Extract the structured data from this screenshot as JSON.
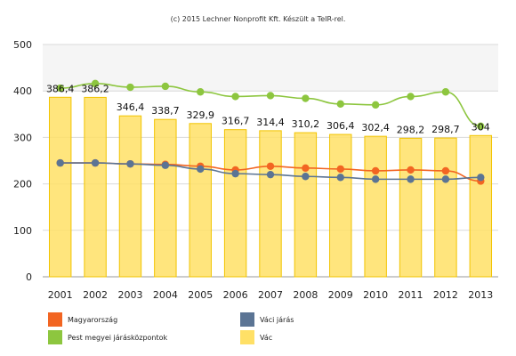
{
  "credit": "(c) 2015 Lechner Nonprofit Kft. Készült a TeIR-rel.",
  "chart_data": {
    "type": "bar",
    "categories": [
      "2001",
      "2002",
      "2003",
      "2004",
      "2005",
      "2006",
      "2007",
      "2008",
      "2009",
      "2010",
      "2011",
      "2012",
      "2013"
    ],
    "ylim": [
      0,
      500
    ],
    "yticks": [
      0,
      100,
      200,
      300,
      400,
      500
    ],
    "grid": true,
    "legend_position": "bottom",
    "series": [
      {
        "name": "Vác",
        "kind": "bar",
        "color": "#ffe066",
        "values": [
          386.4,
          386.2,
          346.4,
          338.7,
          329.9,
          316.7,
          314.4,
          310.2,
          306.4,
          302.4,
          298.2,
          298.7,
          304
        ],
        "labels": [
          "386,4",
          "386,2",
          "346,4",
          "338,7",
          "329,9",
          "316,7",
          "314,4",
          "310,2",
          "306,4",
          "302,4",
          "298,2",
          "298,7",
          "304"
        ]
      },
      {
        "name": "Pest megyei járásközpontok",
        "kind": "line",
        "color": "#8dc63f",
        "values": [
          406,
          416,
          408,
          410,
          398,
          388,
          390,
          384,
          372,
          370,
          388,
          398,
          324
        ]
      },
      {
        "name": "Magyarország",
        "kind": "line",
        "color": "#f26522",
        "values": [
          245,
          245,
          243,
          242,
          238,
          230,
          238,
          234,
          232,
          228,
          230,
          228,
          206
        ]
      },
      {
        "name": "Váci járás",
        "kind": "line",
        "color": "#5b7494",
        "values": [
          245,
          245,
          243,
          240,
          232,
          222,
          220,
          216,
          214,
          210,
          210,
          210,
          214
        ]
      }
    ]
  }
}
